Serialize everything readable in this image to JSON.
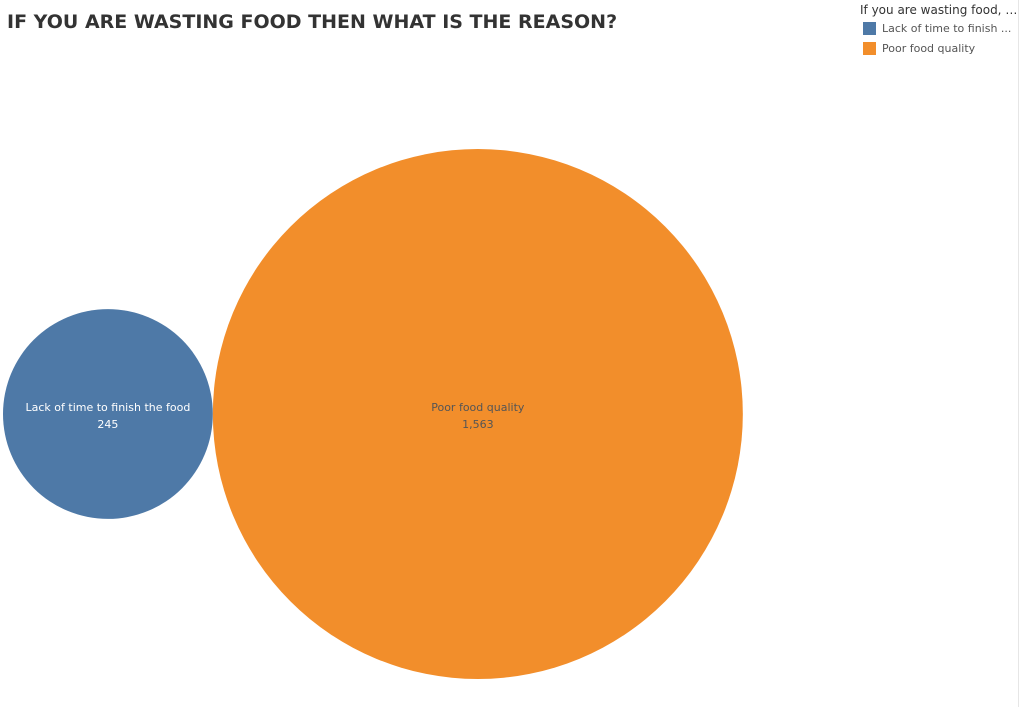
{
  "title": "IF YOU ARE WASTING FOOD THEN WHAT IS THE REASON?",
  "legend": {
    "title": "If you are wasting food, w...",
    "items": [
      {
        "label": "Lack of time to finish ...",
        "color": "#4e79a7"
      },
      {
        "label": "Poor food quality",
        "color": "#f28e2b"
      }
    ]
  },
  "chart_data": {
    "type": "bubble",
    "title": "IF YOU ARE WASTING FOOD THEN WHAT IS THE REASON?",
    "legend_title": "If you are wasting food, w...",
    "legend_position": "top-right",
    "bubbles": [
      {
        "category": "Lack of time to finish the food",
        "value": 245,
        "value_label": "245",
        "color": "#4e79a7",
        "label_color": "#ffffff"
      },
      {
        "category": "Poor food quality",
        "value": 1563,
        "value_label": "1,563",
        "color": "#f28e2b",
        "label_color": "#555555"
      }
    ]
  }
}
